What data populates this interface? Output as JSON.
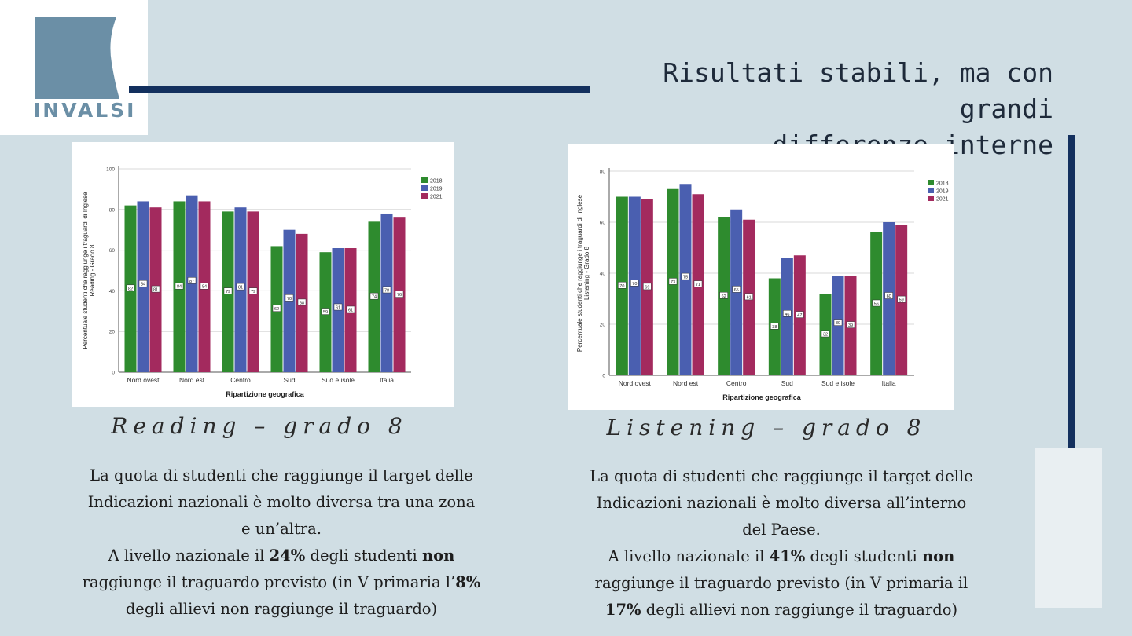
{
  "logo": {
    "text": "INVALSI",
    "color": "#6b8fa6"
  },
  "title": {
    "line1": "Risultati stabili, ma con grandi",
    "line2": "differenze interne"
  },
  "colors": {
    "accent": "#13305e",
    "series_2018": "#2e8b2e",
    "series_2019": "#4a5fb0",
    "series_2021": "#a32a5e"
  },
  "captions": {
    "reading": "Reading – grado 8",
    "listening": "Listening – grado 8"
  },
  "reading_text": {
    "l1": "La quota di studenti che raggiunge il target delle",
    "l2": "Indicazioni nazionali è molto diversa tra una zona",
    "l3": "e un’altra.",
    "l4a": "A livello nazionale il ",
    "l4b": "24%",
    "l4c": " degli studenti ",
    "l4d": "non",
    "l5a": "raggiunge il traguardo previsto (in V primaria l’",
    "l5b": "8%",
    "l6": "degli allievi non raggiunge il traguardo)"
  },
  "listening_text": {
    "l1": "La quota di studenti che raggiunge il target delle",
    "l2": "Indicazioni nazionali è molto diversa all’interno",
    "l3": "del Paese.",
    "l4a": "A livello nazionale il ",
    "l4b": "41%",
    "l4c": " degli studenti ",
    "l4d": "non",
    "l5": "raggiunge il traguardo previsto (in V primaria il",
    "l6a": "17%",
    "l6b": " degli allievi non raggiunge il traguardo)"
  },
  "chart_data": [
    {
      "type": "bar",
      "title": "",
      "xlabel": "Ripartizione geografica",
      "ylabel": "Percentuale studenti che raggiunge i traguardi di Inglese Reading - Grado 8",
      "ylim": [
        0,
        100
      ],
      "yticks": [
        0,
        20,
        40,
        60,
        80,
        100
      ],
      "categories": [
        "Nord ovest",
        "Nord est",
        "Centro",
        "Sud",
        "Sud e isole",
        "Italia"
      ],
      "series": [
        {
          "name": "2018",
          "values": [
            82,
            84,
            79,
            62,
            59,
            74
          ]
        },
        {
          "name": "2019",
          "values": [
            84,
            87,
            81,
            70,
            61,
            78
          ]
        },
        {
          "name": "2021",
          "values": [
            81,
            84,
            79,
            68,
            61,
            76
          ]
        }
      ],
      "legend": "top-right",
      "grid": true
    },
    {
      "type": "bar",
      "title": "",
      "xlabel": "Ripartizione geografica",
      "ylabel": "Percentuale studenti che raggiunge i traguardi di Inglese Listening - Grado 8",
      "ylim": [
        0,
        80
      ],
      "yticks": [
        0,
        20,
        40,
        60,
        80
      ],
      "categories": [
        "Nord ovest",
        "Nord est",
        "Centro",
        "Sud",
        "Sud e isole",
        "Italia"
      ],
      "series": [
        {
          "name": "2018",
          "values": [
            70,
            73,
            62,
            38,
            32,
            56
          ]
        },
        {
          "name": "2019",
          "values": [
            70,
            75,
            65,
            46,
            39,
            60
          ]
        },
        {
          "name": "2021",
          "values": [
            69,
            71,
            61,
            47,
            39,
            59
          ]
        }
      ],
      "legend": "top-right",
      "grid": true
    }
  ]
}
